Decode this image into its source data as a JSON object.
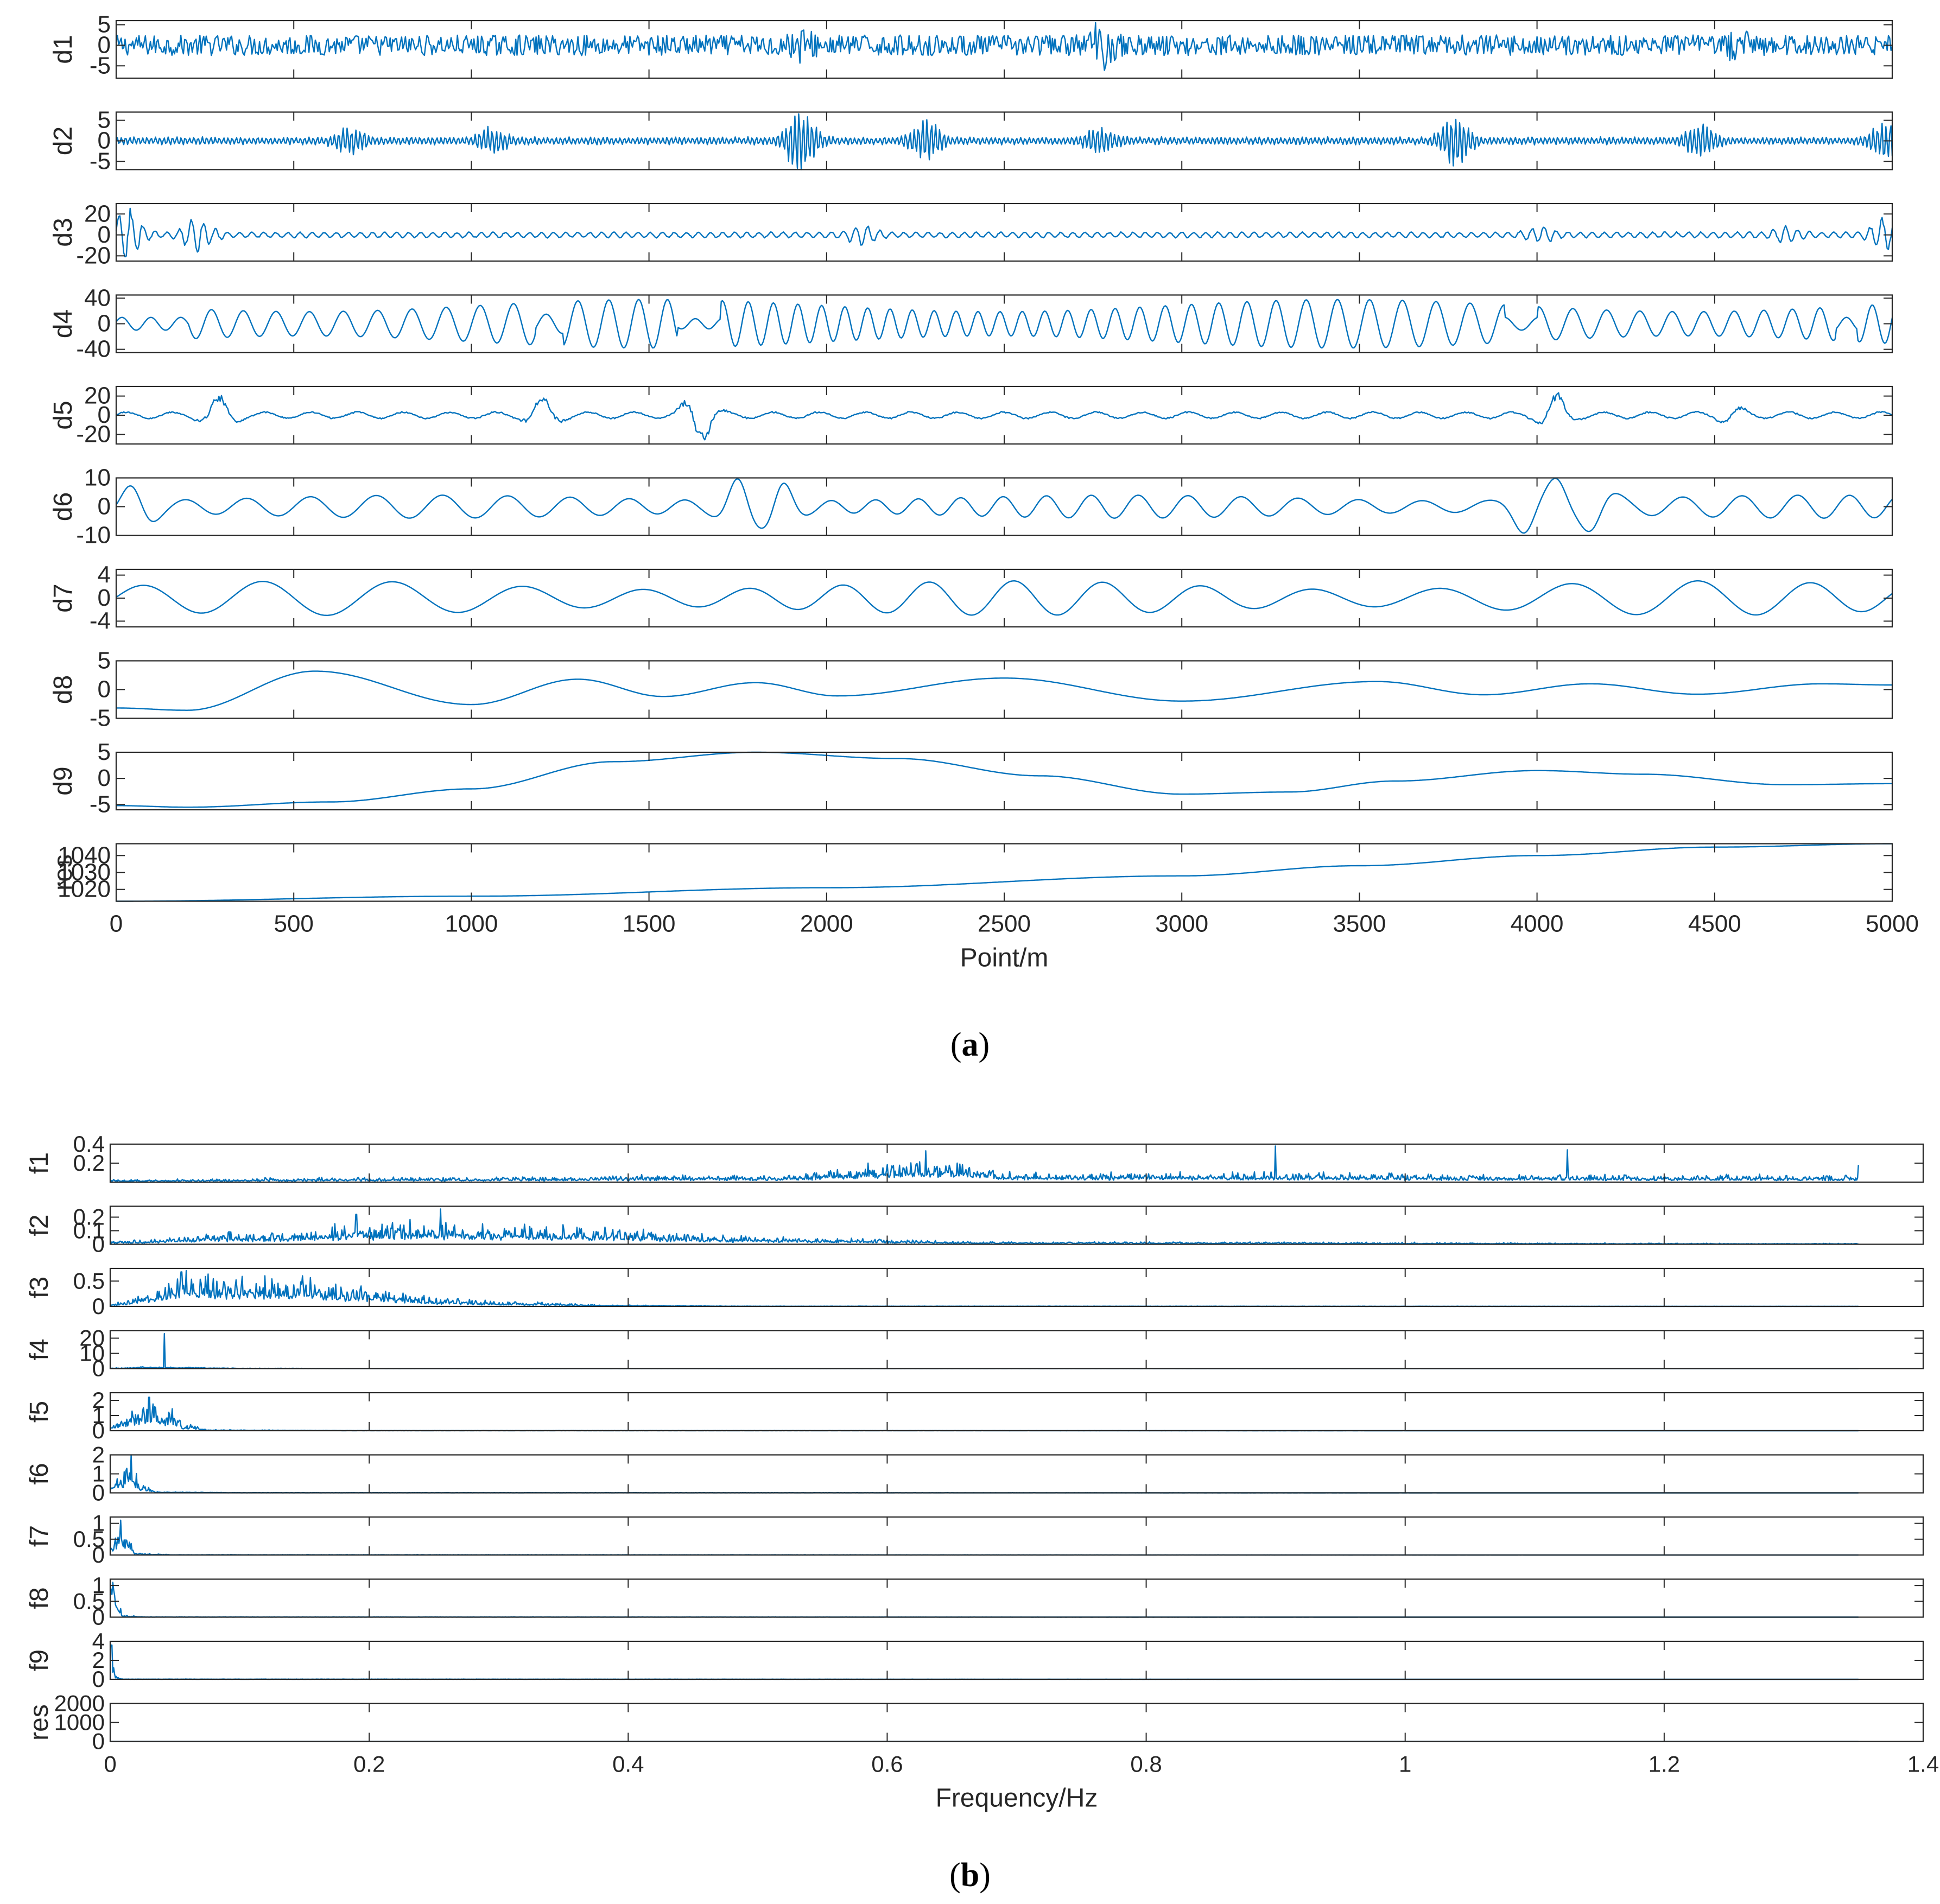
{
  "figure": {
    "panel_a_caption": {
      "open": "(",
      "letter": "a",
      "close": ")"
    },
    "panel_b_caption": {
      "open": "(",
      "letter": "b",
      "close": ")"
    }
  },
  "colors": {
    "line": "#0072BD",
    "axis": "#262626",
    "background": "#ffffff"
  },
  "chart_data": [
    {
      "type": "line",
      "description_role": "panel-a-imf-components",
      "xlabel": "Point/m",
      "xlim": [
        0,
        5000
      ],
      "xticks": [
        0,
        500,
        1000,
        1500,
        2000,
        2500,
        3000,
        3500,
        4000,
        4500,
        5000
      ],
      "xtick_labels": [
        "0",
        "500",
        "1000",
        "1500",
        "2000",
        "2500",
        "3000",
        "3500",
        "4000",
        "4500",
        "5000"
      ],
      "subplots": [
        {
          "ylabel": "d1",
          "ylim": [
            -8,
            6
          ],
          "yticks": [
            5,
            0,
            -5
          ],
          "ytick_labels": [
            "5",
            "0",
            "-5"
          ],
          "signal": "noise",
          "amplitude": 2.5,
          "bursts": [
            [
              2770,
              4
            ],
            [
              1930,
              2
            ],
            [
              4560,
              2
            ]
          ]
        },
        {
          "ylabel": "d2",
          "ylim": [
            -7,
            7
          ],
          "yticks": [
            5,
            0,
            -5
          ],
          "ytick_labels": [
            "5",
            "0",
            "-5"
          ],
          "signal": "bursty",
          "amplitude": 1,
          "bursts": [
            [
              1930,
              8
            ],
            [
              2280,
              5
            ],
            [
              3770,
              6
            ],
            [
              4460,
              4
            ],
            [
              660,
              3
            ],
            [
              1060,
              3
            ],
            [
              2770,
              3
            ],
            [
              4980,
              5
            ]
          ]
        },
        {
          "ylabel": "d3",
          "ylim": [
            -25,
            30
          ],
          "yticks": [
            20,
            0,
            -20
          ],
          "ytick_labels": [
            "20",
            "0",
            "-20"
          ],
          "signal": "bursty",
          "amplitude": 3,
          "bursts": [
            [
              30,
              25
            ],
            [
              230,
              15
            ],
            [
              2100,
              8
            ],
            [
              4010,
              6
            ],
            [
              4700,
              6
            ],
            [
              4980,
              15
            ]
          ]
        },
        {
          "ylabel": "d4",
          "ylim": [
            -45,
            45
          ],
          "yticks": [
            40,
            0,
            -40
          ],
          "ytick_labels": [
            "40",
            "0",
            "-40"
          ],
          "signal": "oscillation",
          "amplitude": 38,
          "period": 88,
          "quiet": [
            [
              0,
              200,
              10
            ],
            [
              1180,
              1260,
              15
            ],
            [
              1580,
              1700,
              8
            ],
            [
              3910,
              4000,
              10
            ],
            [
              4840,
              4900,
              10
            ]
          ]
        },
        {
          "ylabel": "d5",
          "ylim": [
            -30,
            30
          ],
          "yticks": [
            20,
            0,
            -20
          ],
          "ytick_labels": [
            "20",
            "0",
            "-20"
          ],
          "signal": "bursty",
          "amplitude": 4,
          "bursts": [
            [
              290,
              20
            ],
            [
              1200,
              18
            ],
            [
              1640,
              28
            ],
            [
              4050,
              22
            ],
            [
              4550,
              7
            ]
          ]
        },
        {
          "ylabel": "d6",
          "ylim": [
            -10,
            10
          ],
          "yticks": [
            10,
            0,
            -10
          ],
          "ytick_labels": [
            "10",
            "0",
            "-10"
          ],
          "signal": "oscillation",
          "amplitude": 4,
          "period": 170,
          "peaks": [
            [
              60,
              8
            ],
            [
              1760,
              10
            ],
            [
              1860,
              -9
            ],
            [
              3980,
              10
            ],
            [
              4060,
              -10
            ],
            [
              4160,
              9
            ]
          ]
        },
        {
          "ylabel": "d7",
          "ylim": [
            -5,
            5
          ],
          "yticks": [
            4,
            0,
            -4
          ],
          "ytick_labels": [
            "4",
            "0",
            "-4"
          ],
          "signal": "oscillation",
          "amplitude": 3,
          "period": 340
        },
        {
          "ylabel": "d8",
          "ylim": [
            -5,
            5
          ],
          "yticks": [
            5,
            0,
            -5
          ],
          "ytick_labels": [
            "5",
            "0",
            "-5"
          ],
          "signal": "oscillation",
          "amplitude": 2,
          "period": 720,
          "points": [
            [
              0,
              -3.2
            ],
            [
              200,
              -3.6
            ],
            [
              560,
              3.2
            ],
            [
              1000,
              -2.6
            ],
            [
              1300,
              1.8
            ],
            [
              1540,
              -1.2
            ],
            [
              1800,
              1.2
            ],
            [
              2030,
              -1.1
            ],
            [
              2500,
              2.0
            ],
            [
              3000,
              -2.0
            ],
            [
              3550,
              1.4
            ],
            [
              3850,
              -0.9
            ],
            [
              4150,
              1.0
            ],
            [
              4450,
              -0.8
            ],
            [
              4800,
              1.0
            ],
            [
              5000,
              0.8
            ]
          ]
        },
        {
          "ylabel": "d9",
          "ylim": [
            -6,
            5
          ],
          "yticks": [
            5,
            0,
            -5
          ],
          "ytick_labels": [
            "5",
            "0",
            "-5"
          ],
          "signal": "smooth",
          "points": [
            [
              0,
              -5.2
            ],
            [
              200,
              -5.5
            ],
            [
              600,
              -4.5
            ],
            [
              1000,
              -2
            ],
            [
              1400,
              3.2
            ],
            [
              1800,
              5
            ],
            [
              2200,
              3.8
            ],
            [
              2600,
              0.5
            ],
            [
              3000,
              -3
            ],
            [
              3300,
              -2.6
            ],
            [
              3600,
              -0.5
            ],
            [
              4000,
              1.5
            ],
            [
              4300,
              0.8
            ],
            [
              4700,
              -1.2
            ],
            [
              5000,
              -1.0
            ]
          ]
        },
        {
          "ylabel": "res",
          "ylim": [
            1013,
            1047
          ],
          "yticks": [
            1040,
            1030,
            1020
          ],
          "ytick_labels": [
            "1040",
            "1030",
            "1020"
          ],
          "signal": "smooth",
          "points": [
            [
              0,
              1013
            ],
            [
              1000,
              1016
            ],
            [
              2000,
              1021
            ],
            [
              3000,
              1028
            ],
            [
              3500,
              1034
            ],
            [
              4000,
              1040
            ],
            [
              4500,
              1045
            ],
            [
              5000,
              1047
            ]
          ]
        }
      ]
    },
    {
      "type": "line",
      "description_role": "panel-b-spectra",
      "xlabel": "Frequency/Hz",
      "xlim": [
        0,
        1.4
      ],
      "xticks": [
        0,
        0.2,
        0.4,
        0.6,
        0.8,
        1,
        1.2,
        1.4
      ],
      "xtick_labels": [
        "0",
        "0.2",
        "0.4",
        "0.6",
        "0.8",
        "1",
        "1.2",
        "1.4"
      ],
      "data_end": 1.35,
      "subplots": [
        {
          "ylabel": "f1",
          "ylim": [
            0,
            0.4
          ],
          "yticks": [
            0.4,
            0.2,
            0
          ],
          "ytick_labels": [
            "0.4",
            "0.2",
            ""
          ],
          "signal": "spectrum",
          "baseline": 0.04,
          "envelope": [
            [
              0,
              0.02
            ],
            [
              0.2,
              0.04
            ],
            [
              0.5,
              0.06
            ],
            [
              0.64,
              0.18
            ],
            [
              0.7,
              0.08
            ],
            [
              0.9,
              0.08
            ],
            [
              1.1,
              0.06
            ],
            [
              1.35,
              0.06
            ]
          ],
          "spikes": [
            [
              0.63,
              0.33
            ],
            [
              0.9,
              0.38
            ],
            [
              1.125,
              0.34
            ],
            [
              1.35,
              0.18
            ]
          ]
        },
        {
          "ylabel": "f2",
          "ylim": [
            0,
            0.28
          ],
          "yticks": [
            0.2,
            0.1,
            0
          ],
          "ytick_labels": [
            "0.2",
            "0.1",
            "0"
          ],
          "signal": "spectrum",
          "envelope": [
            [
              0,
              0.02
            ],
            [
              0.1,
              0.07
            ],
            [
              0.25,
              0.13
            ],
            [
              0.35,
              0.1
            ],
            [
              0.5,
              0.05
            ],
            [
              0.7,
              0.015
            ],
            [
              1.35,
              0.005
            ]
          ],
          "spikes": [
            [
              0.255,
              0.26
            ],
            [
              0.19,
              0.22
            ]
          ]
        },
        {
          "ylabel": "f3",
          "ylim": [
            0,
            0.75
          ],
          "yticks": [
            0.5,
            0
          ],
          "ytick_labels": [
            "0.5",
            "0"
          ],
          "signal": "spectrum",
          "envelope": [
            [
              0,
              0.05
            ],
            [
              0.03,
              0.2
            ],
            [
              0.05,
              0.55
            ],
            [
              0.1,
              0.5
            ],
            [
              0.15,
              0.45
            ],
            [
              0.2,
              0.3
            ],
            [
              0.25,
              0.15
            ],
            [
              0.3,
              0.08
            ],
            [
              0.4,
              0.02
            ],
            [
              0.5,
              0.005
            ],
            [
              1.35,
              0.002
            ]
          ],
          "spikes": [
            [
              0.055,
              0.68
            ]
          ]
        },
        {
          "ylabel": "f4",
          "ylim": [
            0,
            25
          ],
          "yticks": [
            20,
            10,
            0
          ],
          "ytick_labels": [
            "20",
            "10",
            "0"
          ],
          "signal": "spectrum",
          "envelope": [
            [
              0,
              0.3
            ],
            [
              0.03,
              1.0
            ],
            [
              0.06,
              0.8
            ],
            [
              0.1,
              0.2
            ],
            [
              0.2,
              0.05
            ],
            [
              1.35,
              0.01
            ]
          ],
          "spikes": [
            [
              0.042,
              23
            ]
          ]
        },
        {
          "ylabel": "f5",
          "ylim": [
            0,
            2.5
          ],
          "yticks": [
            2,
            1,
            0
          ],
          "ytick_labels": [
            "2",
            "1",
            "0"
          ],
          "signal": "spectrum",
          "envelope": [
            [
              0,
              0.3
            ],
            [
              0.01,
              0.7
            ],
            [
              0.03,
              1.6
            ],
            [
              0.045,
              1.2
            ],
            [
              0.06,
              0.3
            ],
            [
              0.08,
              0.05
            ],
            [
              0.2,
              0.01
            ],
            [
              1.35,
              0.0
            ]
          ],
          "spikes": [
            [
              0.03,
              2.2
            ]
          ]
        },
        {
          "ylabel": "f6",
          "ylim": [
            0,
            2
          ],
          "yticks": [
            2,
            1,
            0
          ],
          "ytick_labels": [
            "2",
            "1",
            "0"
          ],
          "signal": "spectrum",
          "envelope": [
            [
              0,
              0.3
            ],
            [
              0.008,
              0.9
            ],
            [
              0.016,
              1.3
            ],
            [
              0.025,
              0.4
            ],
            [
              0.035,
              0.05
            ],
            [
              0.1,
              0.01
            ],
            [
              1.35,
              0.0
            ]
          ],
          "spikes": [
            [
              0.016,
              2.0
            ]
          ]
        },
        {
          "ylabel": "f7",
          "ylim": [
            0,
            1.2
          ],
          "yticks": [
            1,
            0.5,
            0
          ],
          "ytick_labels": [
            "1",
            "0.5",
            "0"
          ],
          "signal": "spectrum",
          "envelope": [
            [
              0,
              0.2
            ],
            [
              0.004,
              0.6
            ],
            [
              0.008,
              1.0
            ],
            [
              0.014,
              0.4
            ],
            [
              0.02,
              0.05
            ],
            [
              0.05,
              0.01
            ],
            [
              1.35,
              0.0
            ]
          ],
          "spikes": [
            [
              0.008,
              1.1
            ]
          ]
        },
        {
          "ylabel": "f8",
          "ylim": [
            0,
            1.2
          ],
          "yticks": [
            1,
            0.5,
            0
          ],
          "ytick_labels": [
            "1",
            "0.5",
            "0"
          ],
          "signal": "spectrum",
          "envelope": [
            [
              0,
              0.8
            ],
            [
              0.003,
              1.0
            ],
            [
              0.006,
              0.4
            ],
            [
              0.01,
              0.05
            ],
            [
              0.03,
              0.005
            ],
            [
              1.35,
              0.0
            ]
          ],
          "spikes": [
            [
              0.002,
              1.1
            ]
          ]
        },
        {
          "ylabel": "f9",
          "ylim": [
            0,
            4
          ],
          "yticks": [
            4,
            2,
            0
          ],
          "ytick_labels": [
            "4",
            "2",
            "0"
          ],
          "signal": "spectrum",
          "envelope": [
            [
              0,
              3.2
            ],
            [
              0.002,
              2.0
            ],
            [
              0.004,
              0.3
            ],
            [
              0.01,
              0.02
            ],
            [
              1.35,
              0.0
            ]
          ],
          "spikes": [
            [
              0.001,
              3.6
            ]
          ]
        },
        {
          "ylabel": "res",
          "ylim": [
            0,
            2000
          ],
          "yticks": [
            2000,
            1000,
            0
          ],
          "ytick_labels": [
            "2000",
            "1000",
            "0"
          ],
          "signal": "spectrum",
          "envelope": [
            [
              0,
              0
            ],
            [
              1.35,
              0
            ]
          ],
          "spikes": []
        }
      ]
    }
  ]
}
